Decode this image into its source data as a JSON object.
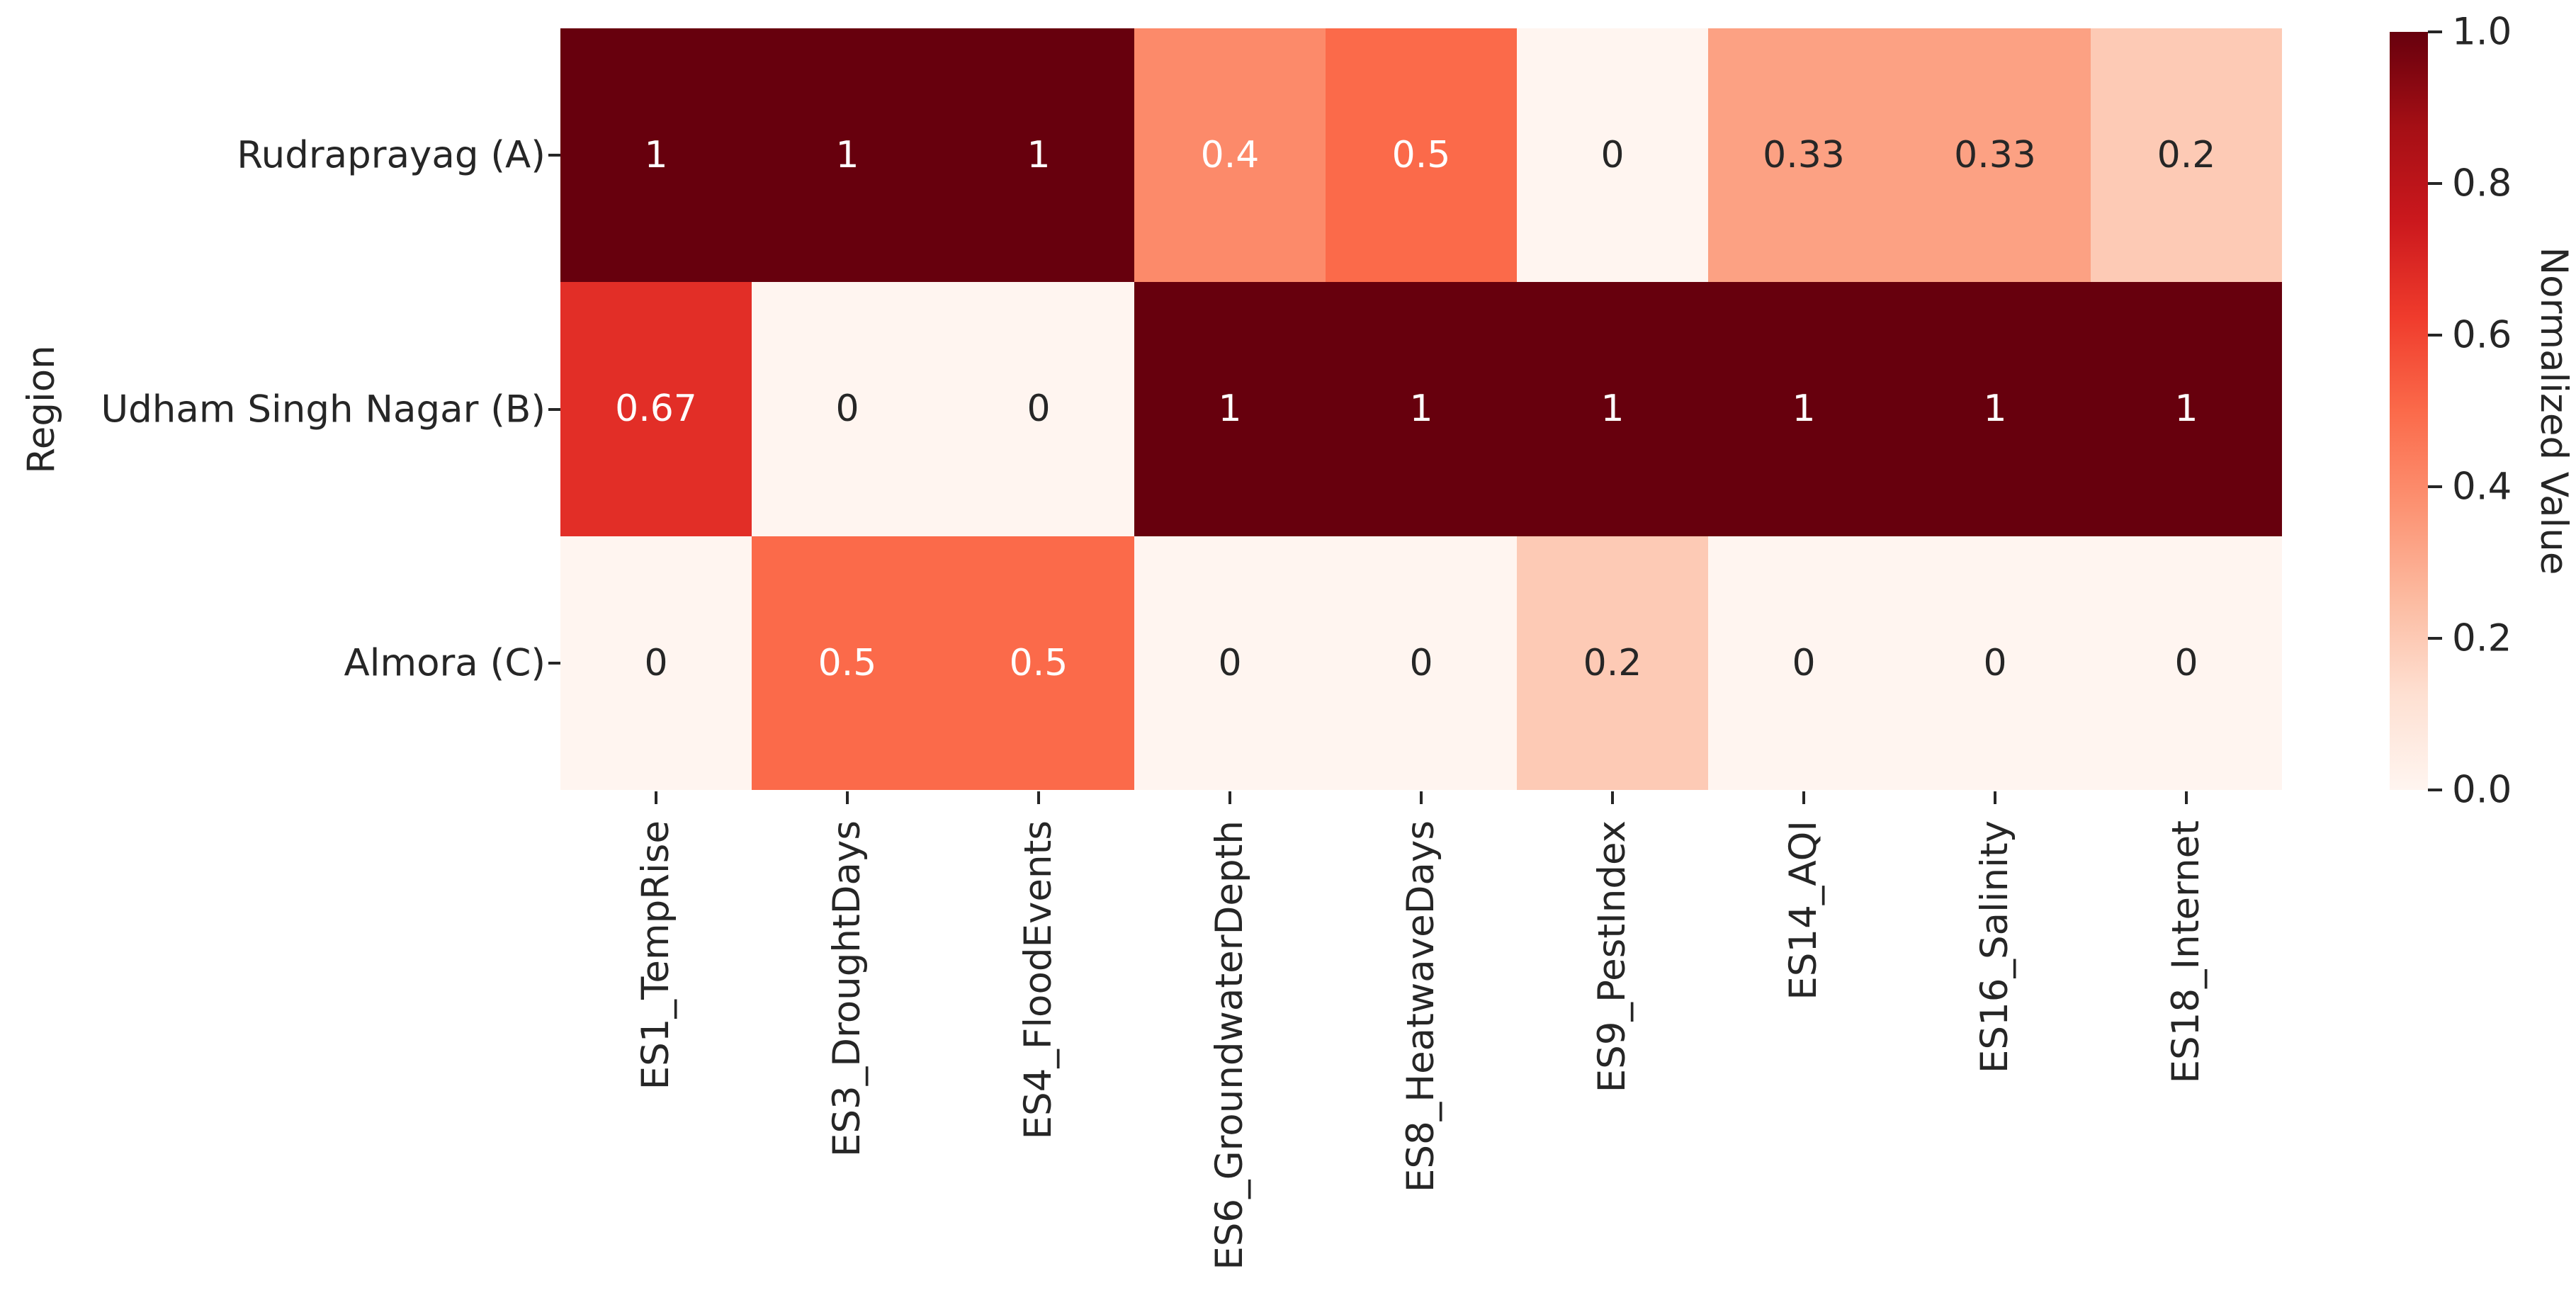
{
  "figure": {
    "background": "#ffffff",
    "text_color": "#262626",
    "tick_color": "#262626"
  },
  "chart_data": {
    "type": "heatmap",
    "title": "",
    "xlabel": "",
    "ylabel": "Region",
    "rows": [
      "Rudraprayag (A)",
      "Udham Singh Nagar (B)",
      "Almora (C)"
    ],
    "columns": [
      "ES1_TempRise",
      "ES3_DroughtDays",
      "ES4_FloodEvents",
      "ES6_GroundwaterDepth",
      "ES8_HeatwaveDays",
      "ES9_PestIndex",
      "ES14_AQI",
      "ES16_Salinity",
      "ES18_Internet"
    ],
    "values": [
      [
        1,
        1,
        1,
        0.4,
        0.5,
        0,
        0.33,
        0.33,
        0.2
      ],
      [
        0.67,
        0,
        0,
        1,
        1,
        1,
        1,
        1,
        1
      ],
      [
        0,
        0.5,
        0.5,
        0,
        0,
        0.2,
        0,
        0,
        0
      ]
    ],
    "value_labels": [
      [
        "1",
        "1",
        "1",
        "0.4",
        "0.5",
        "0",
        "0.33",
        "0.33",
        "0.2"
      ],
      [
        "0.67",
        "0",
        "0",
        "1",
        "1",
        "1",
        "1",
        "1",
        "1"
      ],
      [
        "0",
        "0.5",
        "0.5",
        "0",
        "0",
        "0.2",
        "0",
        "0",
        "0"
      ]
    ],
    "vmin": 0,
    "vmax": 1,
    "grid": false,
    "colormap": {
      "name": "Reds",
      "stops": [
        "#fff5f0",
        "#fee0d2",
        "#fcbba1",
        "#fc9272",
        "#fb6a4a",
        "#ef3b2c",
        "#cb181d",
        "#a50f15",
        "#67000d"
      ]
    },
    "annotation_text_colors": {
      "on_dark": "#ffffff",
      "on_light": "#262626"
    },
    "colorbar": {
      "label": "Normalized Value",
      "position": "right",
      "ticks": [
        {
          "label": "0.0",
          "value": 0
        },
        {
          "label": "0.2",
          "value": 0.2
        },
        {
          "label": "0.4",
          "value": 0.4
        },
        {
          "label": "0.6",
          "value": 0.6
        },
        {
          "label": "0.8",
          "value": 0.8
        },
        {
          "label": "1.0",
          "value": 1
        }
      ]
    }
  }
}
